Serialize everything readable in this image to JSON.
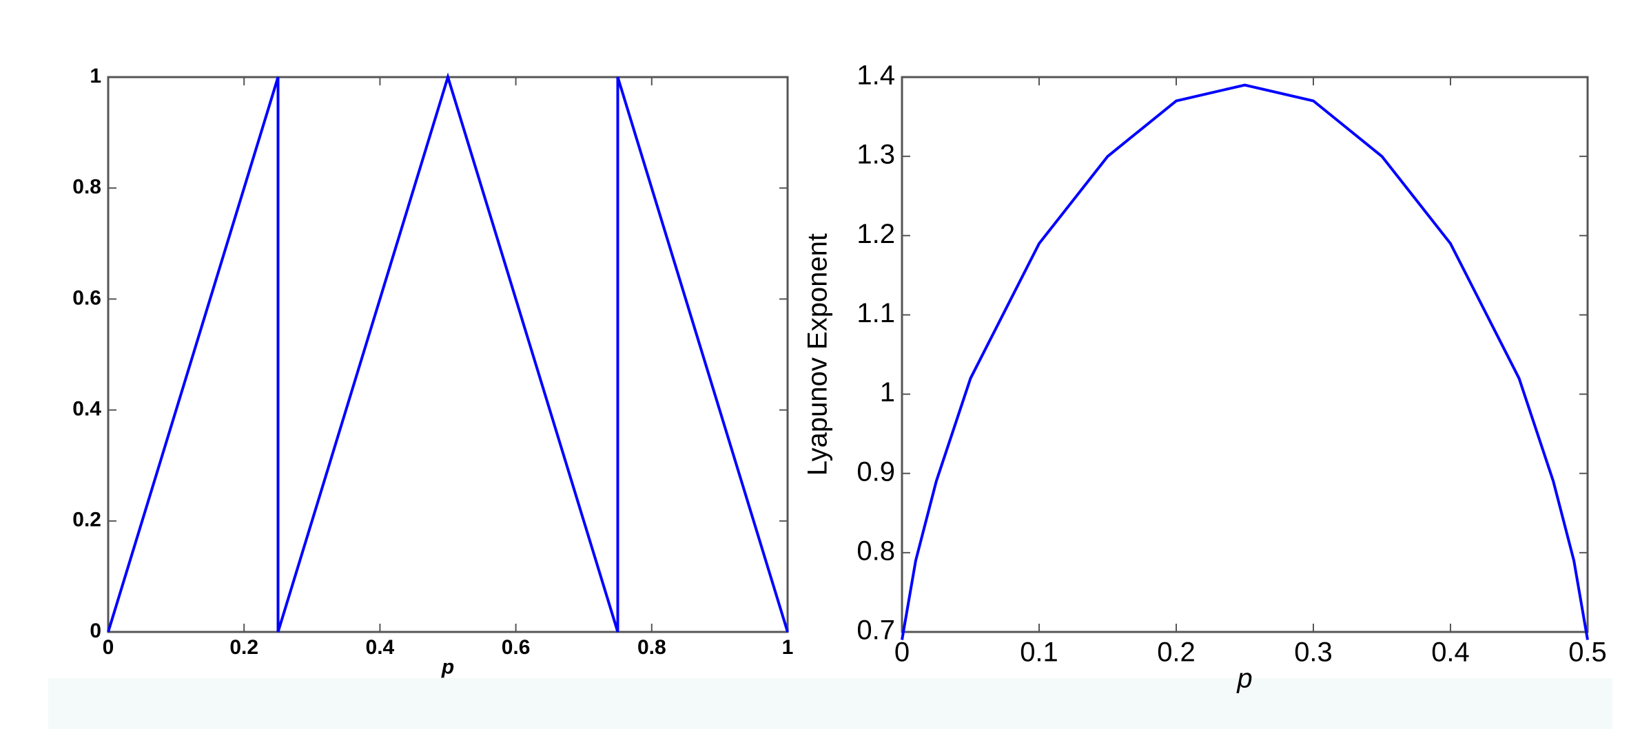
{
  "chart_data": [
    {
      "type": "line",
      "xlabel": "p",
      "color": "#0000ff",
      "x": [
        0,
        0.25,
        0.25,
        0.5,
        0.75,
        0.75,
        1
      ],
      "values": [
        0,
        1,
        0,
        1,
        0,
        1,
        0
      ],
      "xlim": [
        0,
        1
      ],
      "ylim": [
        0,
        1
      ],
      "xticks": [
        0,
        0.2,
        0.4,
        0.6,
        0.8,
        1
      ],
      "yticks": [
        0,
        0.2,
        0.4,
        0.6,
        0.8,
        1
      ]
    },
    {
      "type": "line",
      "xlabel": "p",
      "ylabel": "Lyapunov Exponent",
      "color": "#0000ff",
      "x": [
        0,
        0.01,
        0.025,
        0.05,
        0.1,
        0.15,
        0.2,
        0.25,
        0.3,
        0.35,
        0.4,
        0.45,
        0.475,
        0.49,
        0.5
      ],
      "values": [
        0.69,
        0.79,
        0.89,
        1.02,
        1.19,
        1.3,
        1.37,
        1.39,
        1.37,
        1.3,
        1.19,
        1.02,
        0.89,
        0.79,
        0.69
      ],
      "xlim": [
        0,
        0.5
      ],
      "ylim": [
        0.7,
        1.4
      ],
      "xticks": [
        0,
        0.1,
        0.2,
        0.3,
        0.4,
        0.5
      ],
      "yticks": [
        0.7,
        0.8,
        0.9,
        1,
        1.1,
        1.2,
        1.3,
        1.4
      ]
    }
  ]
}
